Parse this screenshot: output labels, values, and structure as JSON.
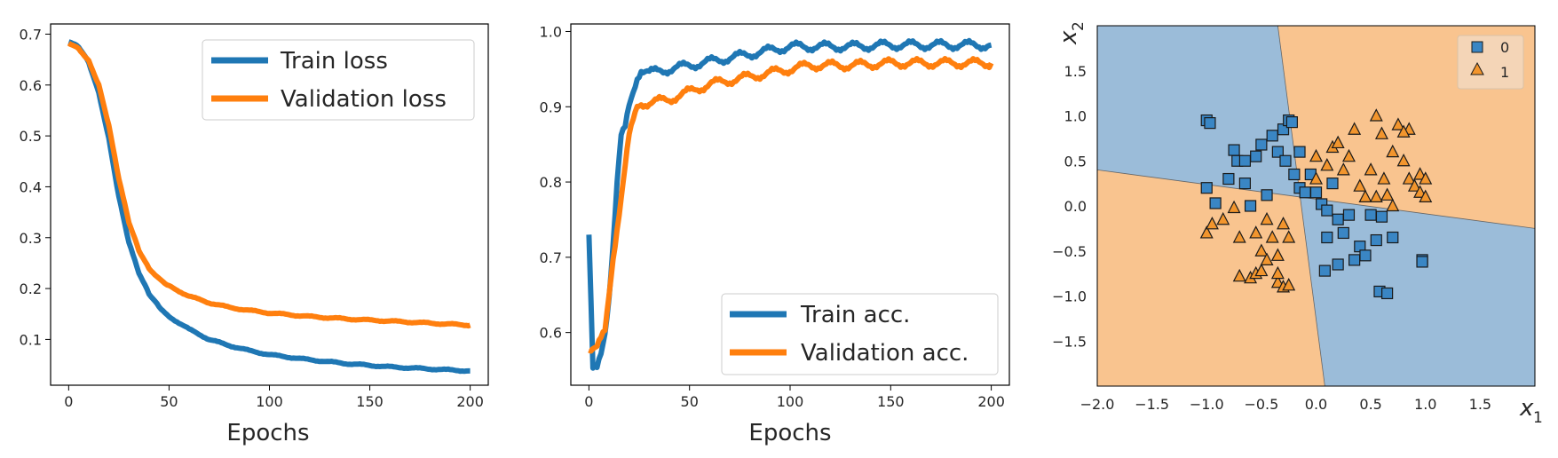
{
  "colors": {
    "blue": "#1f77b4",
    "orange": "#ff7f0e",
    "region_blue": "#9bbcd9",
    "region_orange": "#f9c48f",
    "marker_blue": "#3a86c4",
    "marker_orange": "#f2952d"
  },
  "chart_data": [
    {
      "type": "line",
      "title": "",
      "xlabel": "Epochs",
      "ylabel": "",
      "xlim": [
        -9,
        209
      ],
      "ylim": [
        0.01,
        0.72
      ],
      "xticks": [
        "0",
        "50",
        "100",
        "150",
        "200"
      ],
      "yticks": [
        "0.1",
        "0.2",
        "0.3",
        "0.4",
        "0.5",
        "0.6",
        "0.7"
      ],
      "legend": "top-right",
      "series": [
        {
          "name": "Train loss",
          "x": [
            0,
            5,
            10,
            15,
            20,
            25,
            30,
            35,
            40,
            45,
            50,
            60,
            70,
            80,
            90,
            100,
            120,
            140,
            160,
            180,
            200
          ],
          "values": [
            0.685,
            0.675,
            0.645,
            0.585,
            0.495,
            0.38,
            0.29,
            0.23,
            0.19,
            0.165,
            0.145,
            0.12,
            0.1,
            0.088,
            0.078,
            0.07,
            0.06,
            0.052,
            0.046,
            0.042,
            0.038
          ]
        },
        {
          "name": "Validation loss",
          "x": [
            0,
            5,
            10,
            15,
            20,
            25,
            30,
            35,
            40,
            45,
            50,
            60,
            70,
            80,
            90,
            100,
            120,
            140,
            160,
            180,
            200
          ],
          "values": [
            0.683,
            0.672,
            0.648,
            0.6,
            0.52,
            0.415,
            0.33,
            0.275,
            0.24,
            0.22,
            0.205,
            0.185,
            0.172,
            0.163,
            0.157,
            0.152,
            0.145,
            0.14,
            0.136,
            0.132,
            0.128
          ]
        }
      ]
    },
    {
      "type": "line",
      "title": "",
      "xlabel": "Epochs",
      "ylabel": "",
      "xlim": [
        -9,
        209
      ],
      "ylim": [
        0.53,
        1.01
      ],
      "xticks": [
        "0",
        "50",
        "100",
        "150",
        "200"
      ],
      "yticks": [
        "0.6",
        "0.7",
        "0.8",
        "0.9",
        "1.0"
      ],
      "legend": "bottom-right",
      "series": [
        {
          "name": "Train acc.",
          "x": [
            0,
            2,
            4,
            6,
            8,
            10,
            12,
            14,
            16,
            18,
            20,
            22,
            24,
            26,
            30,
            40,
            50,
            60,
            70,
            80,
            90,
            100,
            110,
            130,
            150,
            170,
            200
          ],
          "values": [
            0.73,
            0.55,
            0.55,
            0.57,
            0.6,
            0.65,
            0.72,
            0.8,
            0.86,
            0.87,
            0.9,
            0.92,
            0.94,
            0.95,
            0.945,
            0.95,
            0.955,
            0.96,
            0.965,
            0.97,
            0.975,
            0.98,
            0.98,
            0.98,
            0.982,
            0.982,
            0.982
          ]
        },
        {
          "name": "Validation acc.",
          "x": [
            0,
            2,
            4,
            6,
            8,
            10,
            12,
            14,
            16,
            18,
            20,
            22,
            24,
            26,
            30,
            40,
            50,
            60,
            70,
            80,
            90,
            100,
            110,
            130,
            150,
            170,
            200
          ],
          "values": [
            0.58,
            0.58,
            0.58,
            0.59,
            0.6,
            0.65,
            0.7,
            0.74,
            0.78,
            0.82,
            0.86,
            0.88,
            0.9,
            0.905,
            0.905,
            0.91,
            0.92,
            0.93,
            0.935,
            0.94,
            0.945,
            0.95,
            0.955,
            0.955,
            0.958,
            0.958,
            0.958
          ]
        }
      ]
    },
    {
      "type": "scatter",
      "title": "",
      "xlabel": "x_1",
      "ylabel": "x_2",
      "xlim": [
        -2.0,
        2.0
      ],
      "ylim": [
        -2.0,
        2.0
      ],
      "xticks": [
        "−2.0",
        "−1.5",
        "−1.0",
        "−0.5",
        "0.0",
        "0.5",
        "1.0",
        "1.5"
      ],
      "yticks": [
        "−1.5",
        "−1.0",
        "−0.5",
        "0.0",
        "0.5",
        "1.0",
        "1.5"
      ],
      "legend": "top-right",
      "decision_boundary": {
        "line_a": [
          [
            -2.0,
            0.4
          ],
          [
            2.0,
            -0.25
          ]
        ],
        "line_b": [
          [
            -0.35,
            2.0
          ],
          [
            0.08,
            -2.0
          ]
        ]
      },
      "series": [
        {
          "name": "0",
          "marker": "square",
          "points": [
            [
              -1.0,
              0.95
            ],
            [
              -0.97,
              0.92
            ],
            [
              -1.0,
              0.2
            ],
            [
              -0.92,
              0.03
            ],
            [
              -0.8,
              0.3
            ],
            [
              -0.75,
              0.62
            ],
            [
              -0.72,
              0.5
            ],
            [
              -0.65,
              0.25
            ],
            [
              -0.65,
              0.5
            ],
            [
              -0.6,
              0.0
            ],
            [
              -0.55,
              0.55
            ],
            [
              -0.5,
              0.68
            ],
            [
              -0.45,
              0.12
            ],
            [
              -0.4,
              0.78
            ],
            [
              -0.35,
              0.6
            ],
            [
              -0.3,
              0.85
            ],
            [
              -0.28,
              0.5
            ],
            [
              -0.25,
              0.95
            ],
            [
              -0.22,
              0.93
            ],
            [
              -0.2,
              0.35
            ],
            [
              -0.15,
              0.6
            ],
            [
              -0.15,
              0.2
            ],
            [
              -0.1,
              0.15
            ],
            [
              -0.05,
              0.35
            ],
            [
              0.0,
              0.15
            ],
            [
              0.05,
              0.02
            ],
            [
              0.1,
              -0.05
            ],
            [
              0.1,
              -0.35
            ],
            [
              0.15,
              0.25
            ],
            [
              0.2,
              -0.15
            ],
            [
              0.25,
              -0.3
            ],
            [
              0.3,
              -0.1
            ],
            [
              0.35,
              -0.6
            ],
            [
              0.4,
              -0.45
            ],
            [
              0.45,
              -0.55
            ],
            [
              0.5,
              -0.1
            ],
            [
              0.55,
              -0.38
            ],
            [
              0.6,
              -0.12
            ],
            [
              0.7,
              -0.35
            ],
            [
              0.08,
              -0.72
            ],
            [
              0.2,
              -0.65
            ],
            [
              0.58,
              -0.95
            ],
            [
              0.65,
              -0.97
            ],
            [
              0.97,
              -0.6
            ],
            [
              0.97,
              -0.62
            ]
          ]
        },
        {
          "name": "1",
          "marker": "triangle",
          "points": [
            [
              -1.0,
              -0.3
            ],
            [
              -0.95,
              -0.2
            ],
            [
              -0.85,
              -0.15
            ],
            [
              -0.75,
              -0.02
            ],
            [
              -0.7,
              -0.35
            ],
            [
              -0.55,
              -0.3
            ],
            [
              -0.5,
              -0.5
            ],
            [
              -0.45,
              -0.15
            ],
            [
              -0.4,
              -0.35
            ],
            [
              -0.35,
              -0.55
            ],
            [
              -0.3,
              -0.2
            ],
            [
              -0.25,
              -0.35
            ],
            [
              -0.7,
              -0.78
            ],
            [
              -0.6,
              -0.8
            ],
            [
              -0.55,
              -0.75
            ],
            [
              -0.5,
              -0.72
            ],
            [
              -0.45,
              -0.6
            ],
            [
              -0.35,
              -0.85
            ],
            [
              -0.3,
              -0.9
            ],
            [
              -0.25,
              -0.88
            ],
            [
              -0.35,
              -0.75
            ],
            [
              0.0,
              0.55
            ],
            [
              0.0,
              0.3
            ],
            [
              0.1,
              0.45
            ],
            [
              0.15,
              0.65
            ],
            [
              0.2,
              0.7
            ],
            [
              0.25,
              0.4
            ],
            [
              0.3,
              0.55
            ],
            [
              0.35,
              0.85
            ],
            [
              0.4,
              0.22
            ],
            [
              0.45,
              0.1
            ],
            [
              0.5,
              0.4
            ],
            [
              0.55,
              1.0
            ],
            [
              0.6,
              0.8
            ],
            [
              0.62,
              0.3
            ],
            [
              0.65,
              0.12
            ],
            [
              0.7,
              0.6
            ],
            [
              0.75,
              0.9
            ],
            [
              0.8,
              0.5
            ],
            [
              0.85,
              0.85
            ],
            [
              0.85,
              0.3
            ],
            [
              0.9,
              0.22
            ],
            [
              0.95,
              0.35
            ],
            [
              0.95,
              0.15
            ],
            [
              1.0,
              0.3
            ],
            [
              1.0,
              0.1
            ],
            [
              0.7,
              0.0
            ],
            [
              0.55,
              0.1
            ],
            [
              0.8,
              0.82
            ]
          ]
        }
      ]
    }
  ]
}
